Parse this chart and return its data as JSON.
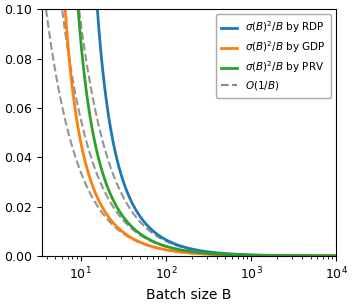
{
  "xlabel": "Batch size B",
  "ylim": [
    0.0,
    0.1
  ],
  "xlim": [
    3.5,
    10000
  ],
  "legend_labels": [
    "$\\sigma(B)^2/B$ by RDP",
    "$\\sigma(B)^2/B$ by GDP",
    "$\\sigma(B)^2/B$ by PRV",
    "$O(1/B)$"
  ],
  "colors": {
    "RDP": "#1f77b4",
    "GDP": "#ff7f0e",
    "PRV": "#2ca02c",
    "ref": "#888888"
  },
  "curves": {
    "RDP": {
      "A": 1.2,
      "B0": 7.0,
      "exp": 1.15
    },
    "GDP": {
      "A": 0.38,
      "B0": 3.2,
      "exp": 1.1
    },
    "PRV": {
      "A": 0.65,
      "B0": 4.0,
      "exp": 1.12
    }
  },
  "refs": {
    "RDP": {
      "A": 1.5,
      "exp": 1.2
    },
    "GDP": {
      "A": 0.48,
      "exp": 1.15
    },
    "PRV": {
      "A": 0.82,
      "exp": 1.17
    }
  },
  "B_min": 3.5,
  "B_max": 10000,
  "n_points": 2000,
  "lw_solid": 2.0,
  "lw_dashed": 1.5,
  "legend_fontsize": 7.5,
  "tick_fontsize": 9,
  "xlabel_fontsize": 10
}
